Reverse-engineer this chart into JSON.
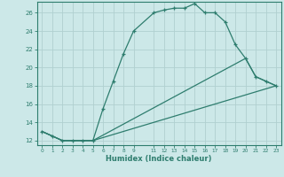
{
  "xlabel": "Humidex (Indice chaleur)",
  "bg_color": "#cce8e8",
  "grid_color": "#b0d0d0",
  "line_color": "#2e7d6e",
  "xlim": [
    -0.5,
    23.5
  ],
  "ylim": [
    11.5,
    27.2
  ],
  "xticks": [
    0,
    1,
    2,
    3,
    4,
    5,
    6,
    7,
    8,
    9,
    11,
    12,
    13,
    14,
    15,
    16,
    17,
    18,
    19,
    20,
    21,
    22,
    23
  ],
  "yticks": [
    12,
    14,
    16,
    18,
    20,
    22,
    24,
    26
  ],
  "series1_x": [
    0,
    1,
    2,
    3,
    4,
    5,
    6,
    7,
    8,
    9,
    11,
    12,
    13,
    14,
    15,
    16,
    17,
    18,
    19,
    20,
    21,
    22,
    23
  ],
  "series1_y": [
    13.0,
    12.5,
    12.0,
    12.0,
    12.0,
    12.0,
    15.5,
    18.5,
    21.5,
    24.0,
    26.0,
    26.3,
    26.5,
    26.5,
    27.0,
    26.0,
    26.0,
    25.0,
    22.5,
    21.0,
    19.0,
    18.5,
    18.0
  ],
  "series2_x": [
    0,
    2,
    3,
    4,
    5,
    23
  ],
  "series2_y": [
    13.0,
    12.0,
    12.0,
    12.0,
    12.0,
    18.0
  ],
  "series3_x": [
    0,
    2,
    3,
    4,
    5,
    20,
    21,
    22,
    23
  ],
  "series3_y": [
    13.0,
    12.0,
    12.0,
    12.0,
    12.0,
    21.0,
    19.0,
    18.5,
    18.0
  ]
}
